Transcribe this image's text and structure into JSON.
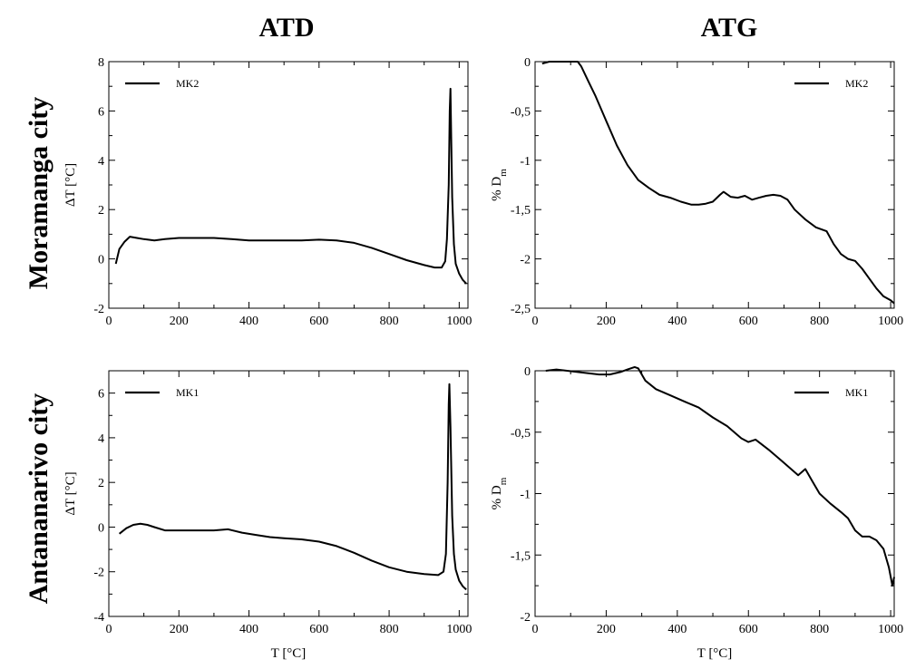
{
  "column_titles": [
    "ATD",
    "ATG"
  ],
  "row_titles": [
    "Moramanga city",
    "Antananarivo city"
  ],
  "chart_data": [
    {
      "id": "atd-mk2",
      "type": "line",
      "ylabel": "ΔT  [°C]",
      "xlabel": "",
      "xlim": [
        0,
        1025
      ],
      "ylim": [
        -2,
        8
      ],
      "xticks": [
        0,
        200,
        400,
        600,
        800,
        1000
      ],
      "yticks": [
        -2,
        0,
        2,
        4,
        6,
        8
      ],
      "tick_labels_x": [
        "0",
        "200",
        "400",
        "600",
        "800",
        "1000"
      ],
      "tick_labels_y": [
        "-2",
        "0",
        "2",
        "4",
        "6",
        "8"
      ],
      "legend_position": "top-left",
      "series": [
        {
          "name": "MK2",
          "x": [
            20,
            30,
            45,
            60,
            80,
            100,
            130,
            160,
            200,
            250,
            300,
            350,
            400,
            450,
            500,
            550,
            600,
            650,
            700,
            750,
            800,
            850,
            900,
            930,
            950,
            960,
            965,
            970,
            973,
            975,
            977,
            980,
            985,
            990,
            1000,
            1010,
            1020
          ],
          "y": [
            -0.2,
            0.4,
            0.7,
            0.9,
            0.85,
            0.8,
            0.75,
            0.8,
            0.85,
            0.85,
            0.85,
            0.8,
            0.75,
            0.75,
            0.75,
            0.75,
            0.78,
            0.75,
            0.65,
            0.45,
            0.2,
            -0.05,
            -0.25,
            -0.35,
            -0.35,
            -0.1,
            0.8,
            3.0,
            6.0,
            6.9,
            5.0,
            2.5,
            0.6,
            -0.2,
            -0.6,
            -0.85,
            -1.0
          ]
        }
      ]
    },
    {
      "id": "atg-mk2",
      "type": "line",
      "ylabel": "% D",
      "ylabel_sub": "m",
      "xlabel": "",
      "xlim": [
        0,
        1010
      ],
      "ylim": [
        -2.5,
        0
      ],
      "xticks": [
        0,
        200,
        400,
        600,
        800,
        1000
      ],
      "yticks": [
        -2.5,
        -2,
        -1.5,
        -1,
        -0.5,
        0
      ],
      "tick_labels_x": [
        "0",
        "200",
        "400",
        "600",
        "800",
        "1000"
      ],
      "tick_labels_y": [
        "-2,5",
        "-2",
        "-1,5",
        "-1",
        "-0,5",
        "0"
      ],
      "legend_position": "top-right",
      "series": [
        {
          "name": "MK2",
          "x": [
            20,
            40,
            60,
            80,
            100,
            120,
            130,
            150,
            170,
            200,
            230,
            260,
            290,
            320,
            350,
            380,
            410,
            440,
            460,
            480,
            500,
            520,
            530,
            550,
            570,
            590,
            610,
            630,
            650,
            670,
            690,
            710,
            730,
            760,
            790,
            820,
            840,
            860,
            880,
            900,
            920,
            940,
            960,
            980,
            1000,
            1010
          ],
          "y": [
            -0.02,
            0,
            0,
            0,
            0,
            0,
            -0.05,
            -0.2,
            -0.35,
            -0.6,
            -0.85,
            -1.05,
            -1.2,
            -1.28,
            -1.35,
            -1.38,
            -1.42,
            -1.45,
            -1.45,
            -1.44,
            -1.42,
            -1.35,
            -1.32,
            -1.37,
            -1.38,
            -1.36,
            -1.4,
            -1.38,
            -1.36,
            -1.35,
            -1.36,
            -1.4,
            -1.5,
            -1.6,
            -1.68,
            -1.72,
            -1.85,
            -1.95,
            -2.0,
            -2.02,
            -2.1,
            -2.2,
            -2.3,
            -2.38,
            -2.42,
            -2.45
          ]
        }
      ]
    },
    {
      "id": "atd-mk1",
      "type": "line",
      "ylabel": "ΔT  [°C]",
      "xlabel": "T [°C]",
      "xlim": [
        0,
        1025
      ],
      "ylim": [
        -4,
        7
      ],
      "xticks": [
        0,
        200,
        400,
        600,
        800,
        1000
      ],
      "yticks": [
        -4,
        -2,
        0,
        2,
        4,
        6
      ],
      "tick_labels_x": [
        "0",
        "200",
        "400",
        "600",
        "800",
        "1000"
      ],
      "tick_labels_y": [
        "-4",
        "-2",
        "0",
        "2",
        "4",
        "6"
      ],
      "legend_position": "top-left",
      "series": [
        {
          "name": "MK1",
          "x": [
            30,
            50,
            70,
            90,
            110,
            130,
            160,
            200,
            250,
            300,
            340,
            380,
            420,
            460,
            500,
            550,
            600,
            650,
            700,
            750,
            800,
            850,
            900,
            940,
            955,
            962,
            967,
            970,
            972,
            975,
            980,
            985,
            990,
            1000,
            1010,
            1020
          ],
          "y": [
            -0.3,
            -0.05,
            0.1,
            0.15,
            0.1,
            0.0,
            -0.15,
            -0.15,
            -0.15,
            -0.15,
            -0.1,
            -0.25,
            -0.35,
            -0.45,
            -0.5,
            -0.55,
            -0.65,
            -0.85,
            -1.15,
            -1.5,
            -1.8,
            -2.0,
            -2.1,
            -2.15,
            -2.0,
            -1.2,
            2.0,
            5.5,
            6.4,
            4.5,
            0.5,
            -1.2,
            -1.9,
            -2.4,
            -2.65,
            -2.8
          ]
        }
      ]
    },
    {
      "id": "atg-mk1",
      "type": "line",
      "ylabel": "% D",
      "ylabel_sub": "m",
      "xlabel": "T [°C]",
      "xlim": [
        0,
        1010
      ],
      "ylim": [
        -2,
        0
      ],
      "xticks": [
        0,
        200,
        400,
        600,
        800,
        1000
      ],
      "yticks": [
        -2,
        -1.5,
        -1,
        -0.5,
        0
      ],
      "tick_labels_x": [
        "0",
        "200",
        "400",
        "600",
        "800",
        "1000"
      ],
      "tick_labels_y": [
        "-2",
        "-1,5",
        "-1",
        "-0,5",
        "0"
      ],
      "legend_position": "top-right",
      "series": [
        {
          "name": "MK1",
          "x": [
            30,
            60,
            90,
            120,
            150,
            180,
            210,
            240,
            260,
            280,
            290,
            310,
            340,
            380,
            420,
            460,
            500,
            540,
            580,
            600,
            620,
            660,
            700,
            740,
            760,
            780,
            800,
            830,
            860,
            880,
            900,
            920,
            940,
            960,
            980,
            995,
            1005,
            1010
          ],
          "y": [
            0,
            0.01,
            0,
            -0.01,
            -0.02,
            -0.03,
            -0.03,
            -0.01,
            0.01,
            0.03,
            0.02,
            -0.08,
            -0.15,
            -0.2,
            -0.25,
            -0.3,
            -0.38,
            -0.45,
            -0.55,
            -0.58,
            -0.56,
            -0.65,
            -0.75,
            -0.85,
            -0.8,
            -0.9,
            -1.0,
            -1.08,
            -1.15,
            -1.2,
            -1.3,
            -1.35,
            -1.35,
            -1.38,
            -1.45,
            -1.6,
            -1.75,
            -1.68
          ]
        }
      ]
    }
  ]
}
